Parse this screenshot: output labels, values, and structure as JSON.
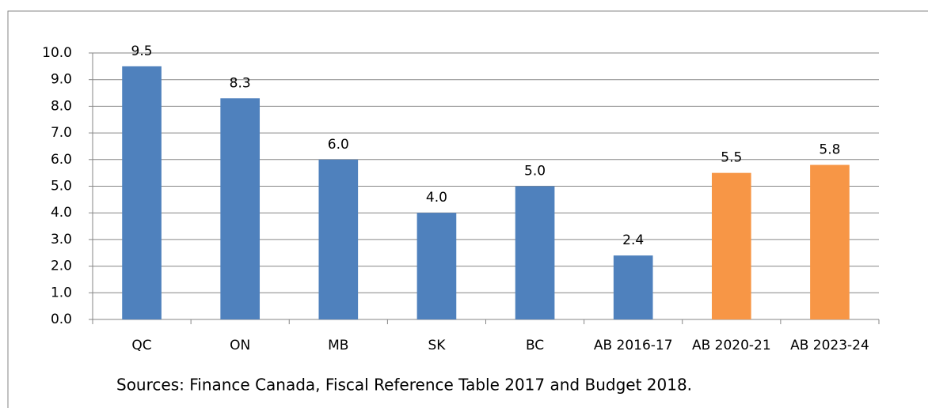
{
  "chart_data": {
    "type": "bar",
    "categories": [
      "QC",
      "ON",
      "MB",
      "SK",
      "BC",
      "AB 2016-17",
      "AB 2020-21",
      "AB 2023-24"
    ],
    "values": [
      9.5,
      8.3,
      6.0,
      4.0,
      5.0,
      2.4,
      5.5,
      5.8
    ],
    "value_labels": [
      "9.5",
      "8.3",
      "6.0",
      "4.0",
      "5.0",
      "2.4",
      "5.5",
      "5.8"
    ],
    "colors": [
      "#4f81bd",
      "#4f81bd",
      "#4f81bd",
      "#4f81bd",
      "#4f81bd",
      "#4f81bd",
      "#f79646",
      "#f79646"
    ],
    "ylim": [
      0,
      10
    ],
    "yticks": [
      {
        "value": 0,
        "label": "0.0"
      },
      {
        "value": 1,
        "label": "1.0"
      },
      {
        "value": 2,
        "label": "2.0"
      },
      {
        "value": 3,
        "label": "3.0"
      },
      {
        "value": 4,
        "label": "4.0"
      },
      {
        "value": 5,
        "label": "5.0"
      },
      {
        "value": 6,
        "label": "6.0"
      },
      {
        "value": 7,
        "label": "7.0"
      },
      {
        "value": 8,
        "label": "8.0"
      },
      {
        "value": 9,
        "label": "9.0"
      },
      {
        "value": 10,
        "label": "10.0"
      }
    ],
    "grid": true,
    "source": "Sources: Finance Canada, Fiscal Reference Table 2017 and Budget 2018."
  }
}
